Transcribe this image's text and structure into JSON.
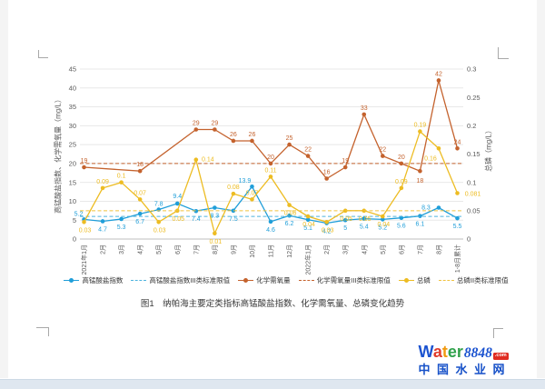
{
  "page": {
    "caption": "图1　纳帕海主要定类指标高锰酸盐指数、化学需氧量、总磷变化趋势"
  },
  "chart_data": {
    "type": "line",
    "title": "",
    "categories": [
      "2021年1月",
      "2月",
      "3月",
      "4月",
      "5月",
      "6月",
      "7月",
      "8月",
      "9月",
      "10月",
      "11月",
      "12月",
      "2022年1月",
      "2月",
      "3月",
      "4月",
      "5月",
      "6月",
      "7月",
      "8月",
      "1-8月累计"
    ],
    "series": [
      {
        "name": "高锰酸盐指数",
        "axis": "left",
        "color": "#1f9ed9",
        "style": "solid",
        "marker": true,
        "values": [
          5.2,
          4.7,
          5.3,
          6.7,
          7.8,
          9.4,
          7.4,
          8.3,
          7.5,
          13.9,
          4.6,
          6.2,
          5.1,
          4.2,
          5,
          5.4,
          5.2,
          5.6,
          6.1,
          8.3,
          5.5
        ]
      },
      {
        "name": "高锰酸盐指数III类标准限值",
        "axis": "left",
        "color": "#4db3de",
        "style": "dashed",
        "marker": false,
        "constant": 6
      },
      {
        "name": "化学需氧量",
        "axis": "left",
        "color": "#c4622d",
        "style": "solid",
        "marker": true,
        "values": [
          19,
          null,
          null,
          18,
          null,
          null,
          29,
          29,
          26,
          26,
          20,
          25,
          22,
          16,
          19,
          33,
          22,
          20,
          18,
          42,
          24
        ]
      },
      {
        "name": "化学需氧量III类标准限值",
        "axis": "left",
        "color": "#c4622d",
        "style": "dashed",
        "marker": false,
        "constant": 20
      },
      {
        "name": "总磷",
        "axis": "right",
        "color": "#edbc22",
        "style": "solid",
        "marker": true,
        "values": [
          0.03,
          0.09,
          0.1,
          0.07,
          0.03,
          0.05,
          0.14,
          0.01,
          0.08,
          0.07,
          0.11,
          0.06,
          0.04,
          0.03,
          0.05,
          0.05,
          0.04,
          0.09,
          0.19,
          0.16,
          0.081
        ]
      },
      {
        "name": "总磷II类标准限值",
        "axis": "right",
        "color": "#f0c23f",
        "style": "dashed",
        "marker": false,
        "constant": 0.05
      }
    ],
    "y_left": {
      "label": "高锰酸盐指数、化学需氧量（mg/L）",
      "min": 0,
      "max": 45,
      "ticks": [
        0,
        5,
        10,
        15,
        20,
        25,
        30,
        35,
        40,
        45
      ]
    },
    "y_right": {
      "label": "总磷（mg/L）",
      "min": 0,
      "max": 0.3,
      "ticks": [
        0,
        0.05,
        0.1,
        0.15,
        0.2,
        0.25,
        0.3
      ]
    },
    "grid": true,
    "legend_position": "bottom"
  },
  "logo": {
    "letters": [
      {
        "ch": "W",
        "color": "#1b53d0"
      },
      {
        "ch": "a",
        "color": "#e03c2d"
      },
      {
        "ch": "t",
        "color": "#f09a10"
      },
      {
        "ch": "e",
        "color": "#2fa24c"
      },
      {
        "ch": "r",
        "color": "#33a04a"
      }
    ],
    "suffix": "8848",
    "suffix_color": "#1b53d0",
    "tld": ".com",
    "subtitle": "中国水业网",
    "subtitle_color": "#1550c8"
  }
}
